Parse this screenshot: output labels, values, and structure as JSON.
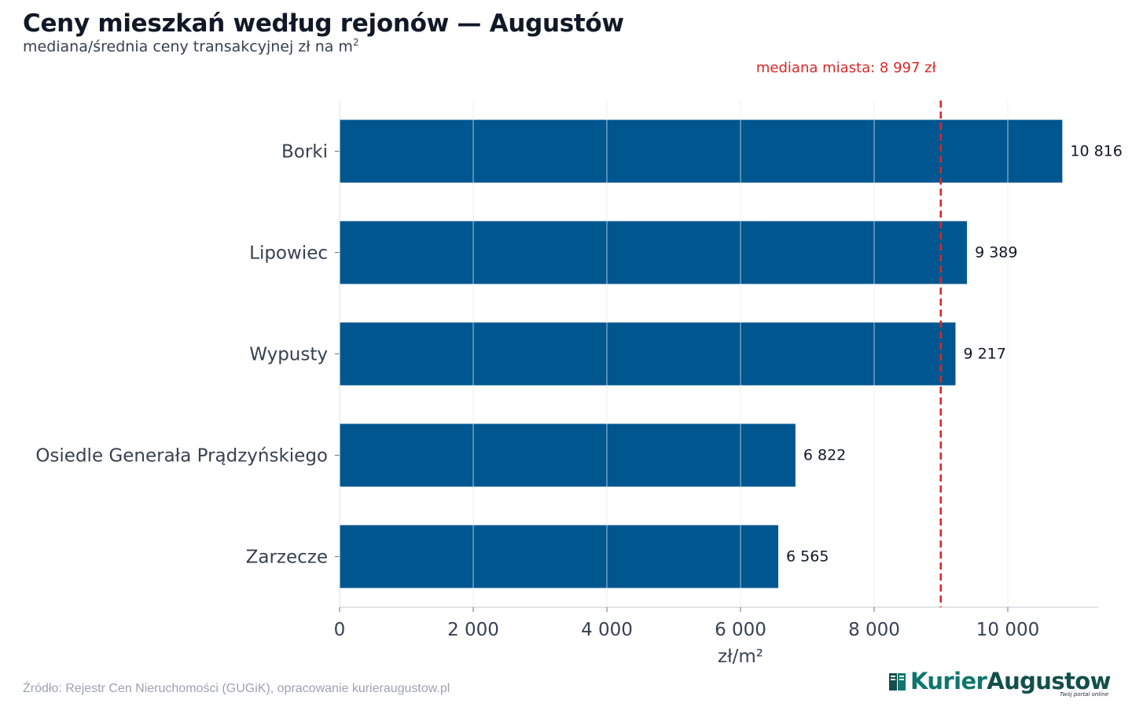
{
  "header": {
    "title": "Ceny mieszkań według rejonów — Augustów",
    "subtitle": "mediana/średnia ceny transakcyjnej zł na m",
    "subtitle_sup": "2"
  },
  "chart_data": {
    "type": "bar",
    "orientation": "horizontal",
    "categories": [
      "Borki",
      "Lipowiec",
      "Wypusty",
      "Osiedle Generała Prądzyńskiego",
      "Zarzecze"
    ],
    "values": [
      10816,
      9389,
      9217,
      6822,
      6565
    ],
    "value_labels": [
      "10 816",
      "9 389",
      "9 217",
      "6 822",
      "6 565"
    ],
    "xlabel": "zł/m²",
    "xlim": [
      0,
      11350
    ],
    "xticks": [
      0,
      2000,
      4000,
      6000,
      8000,
      10000
    ],
    "xtick_labels": [
      "0",
      "2 000",
      "4 000",
      "6 000",
      "8 000",
      "10 000"
    ],
    "grid": true,
    "bar_color": "#00568f",
    "reference_line": {
      "value": 8997,
      "label": "mediana miasta: 8 997 zł",
      "color": "#dc2626",
      "style": "dashed"
    }
  },
  "footer": {
    "source": "Źródło: Rejestr Cen Nieruchomości (GUGiK), opracowanie kurieraugustow.pl",
    "logo_part1": "Kurier",
    "logo_part2": "Augustow",
    "logo_tagline": "Twój portal online"
  }
}
